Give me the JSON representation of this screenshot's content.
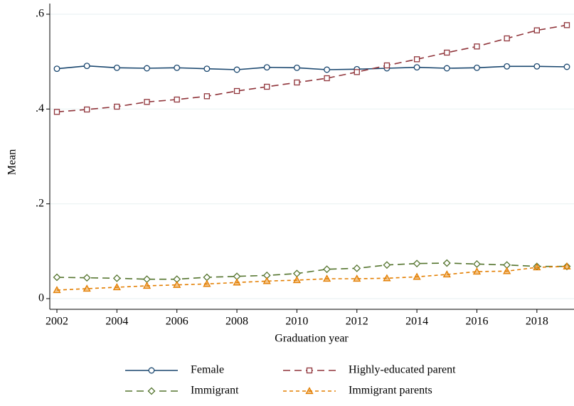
{
  "chart_data": {
    "type": "line",
    "x": [
      2002,
      2003,
      2004,
      2005,
      2006,
      2007,
      2008,
      2009,
      2010,
      2011,
      2012,
      2013,
      2014,
      2015,
      2016,
      2017,
      2018,
      2019
    ],
    "xlabel": "Graduation year",
    "ylabel": "Mean",
    "xlim": [
      2002,
      2019
    ],
    "xticks": [
      2002,
      2004,
      2006,
      2008,
      2010,
      2012,
      2014,
      2016,
      2018
    ],
    "ylim": [
      0,
      0.6
    ],
    "yticks": [
      0,
      {
        "value": 0.2,
        "label": ".2"
      },
      {
        "value": 0.4,
        "label": ".4"
      },
      {
        "value": 0.6,
        "label": ".6"
      }
    ],
    "grid": true,
    "legend": "bottom",
    "series": [
      {
        "name": "Female",
        "color": "#1a476f",
        "marker": "circle",
        "dash": "solid",
        "values": [
          0.485,
          0.491,
          0.487,
          0.486,
          0.487,
          0.485,
          0.483,
          0.488,
          0.487,
          0.483,
          0.484,
          0.486,
          0.488,
          0.486,
          0.487,
          0.49,
          0.49,
          0.489
        ]
      },
      {
        "name": "Highly-educated parent",
        "color": "#90353b",
        "marker": "square",
        "dash": "long",
        "values": [
          0.394,
          0.399,
          0.405,
          0.415,
          0.42,
          0.427,
          0.438,
          0.447,
          0.456,
          0.465,
          0.478,
          0.492,
          0.505,
          0.519,
          0.532,
          0.549,
          0.566,
          0.577
        ]
      },
      {
        "name": "Immigrant",
        "color": "#55752f",
        "marker": "diamond",
        "dash": "long",
        "values": [
          0.045,
          0.044,
          0.043,
          0.041,
          0.041,
          0.045,
          0.047,
          0.049,
          0.053,
          0.062,
          0.064,
          0.071,
          0.074,
          0.075,
          0.073,
          0.071,
          0.068,
          0.068
        ]
      },
      {
        "name": "Immigrant parents",
        "color": "#e37e00",
        "marker": "triangle",
        "dash": "short",
        "values": [
          0.018,
          0.021,
          0.024,
          0.027,
          0.029,
          0.031,
          0.034,
          0.037,
          0.039,
          0.042,
          0.042,
          0.043,
          0.046,
          0.051,
          0.057,
          0.058,
          0.066,
          0.068
        ]
      }
    ]
  }
}
